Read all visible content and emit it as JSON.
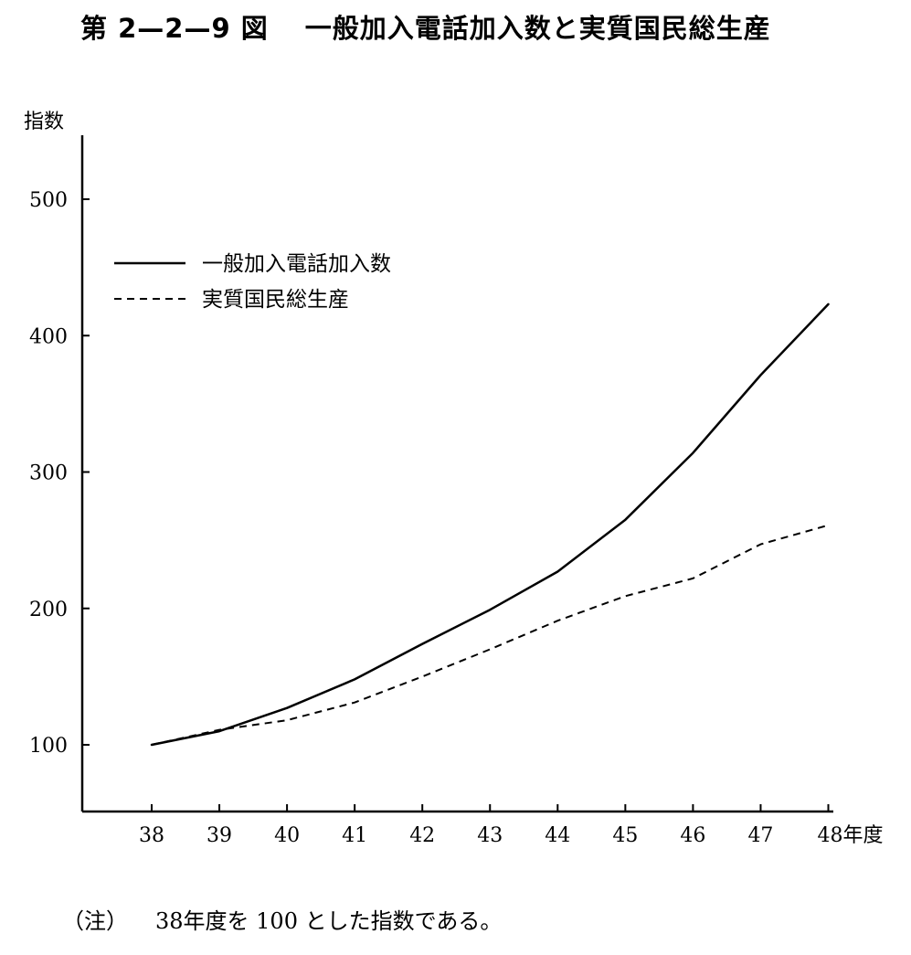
{
  "title": {
    "number": "第 2—2—9 図",
    "text": "一般加入電話加入数と実質国民総生産"
  },
  "note": {
    "label": "（注）",
    "text": "38年度を 100 とした指数である。"
  },
  "chart_data": {
    "type": "line",
    "title": "一般加入電話加入数と実質国民総生産",
    "ylabel": "指数",
    "xlabel": "年度",
    "x": [
      "38",
      "39",
      "40",
      "41",
      "42",
      "43",
      "44",
      "45",
      "46",
      "47",
      "48"
    ],
    "x_tick_labels": [
      "38",
      "39",
      "40",
      "41",
      "42",
      "43",
      "44",
      "45",
      "46",
      "47",
      "48年度"
    ],
    "ylim": [
      50,
      550
    ],
    "y_ticks": [
      100,
      200,
      300,
      400,
      500
    ],
    "grid": false,
    "legend_position": "top-left",
    "series": [
      {
        "name": "一般加入電話加入数",
        "style": "solid",
        "values": [
          100,
          110,
          127,
          148,
          174,
          199,
          227,
          265,
          314,
          371,
          423
        ]
      },
      {
        "name": "実質国民総生産",
        "style": "dashed",
        "values": [
          100,
          111,
          118,
          131,
          150,
          170,
          191,
          209,
          222,
          247,
          261
        ]
      }
    ]
  }
}
